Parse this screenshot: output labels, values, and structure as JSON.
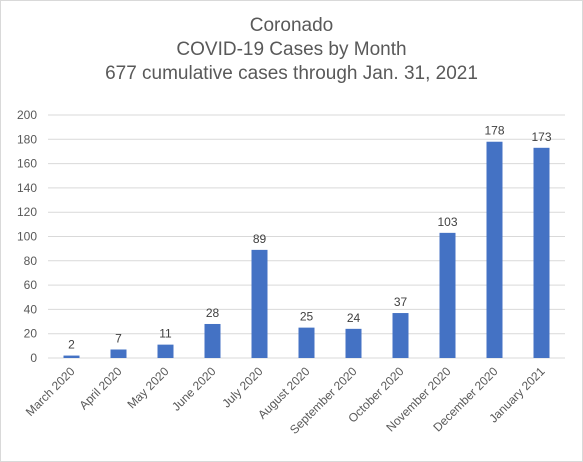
{
  "chart_data": {
    "type": "bar",
    "title_lines": [
      "Coronado",
      "COVID-19 Cases by Month",
      "677 cumulative cases through Jan. 31, 2021"
    ],
    "categories": [
      "March 2020",
      "April 2020",
      "May 2020",
      "June 2020",
      "July 2020",
      "August 2020",
      "September 2020",
      "October 2020",
      "November 2020",
      "December 2020",
      "January 2021"
    ],
    "values": [
      2,
      7,
      11,
      28,
      89,
      25,
      24,
      37,
      103,
      178,
      173
    ],
    "ylim": [
      0,
      200
    ],
    "yticks": [
      0,
      20,
      40,
      60,
      80,
      100,
      120,
      140,
      160,
      180,
      200
    ],
    "grid": true,
    "legend": "none",
    "bar_color": "#4472c4",
    "grid_color": "#d9d9d9"
  }
}
